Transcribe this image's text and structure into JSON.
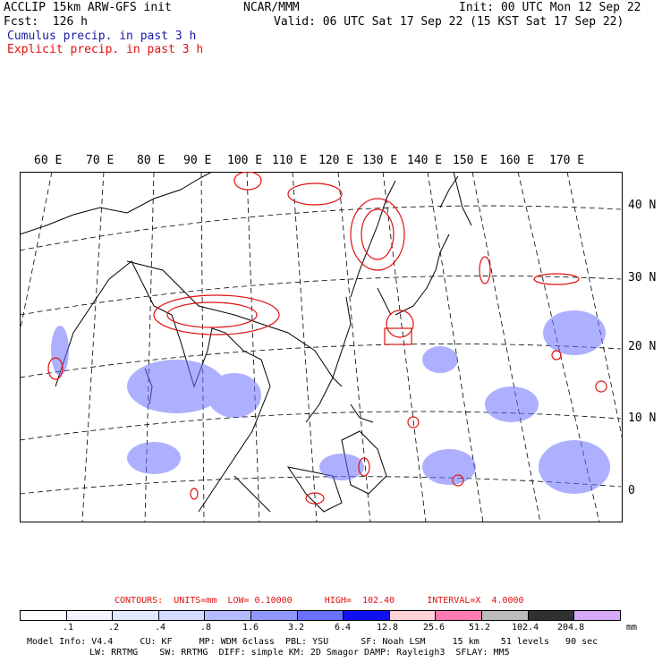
{
  "header": {
    "model": "ACCLIP 15km ARW-GFS init",
    "org": "NCAR/MMM",
    "init": "Init: 00 UTC Mon 12 Sep 22",
    "fcst": "Fcst:  126 h",
    "valid": "Valid: 06 UTC Sat 17 Sep 22 (15 KST Sat 17 Sep 22)",
    "cumulus": "Cumulus precip. in past 3 h",
    "explicit": "Explicit precip. in past 3 h"
  },
  "longitudes": [
    "60 E",
    "70 E",
    "80 E",
    "90 E",
    "100 E",
    "110 E",
    "120 E",
    "130 E",
    "140 E",
    "150 E",
    "160 E",
    "170 E"
  ],
  "latitudes": [
    "40 N",
    "30 N",
    "20 N",
    "10 N",
    "0"
  ],
  "legend": {
    "contours": "CONTOURS:  UNITS=mm  LOW= 0.10000      HIGH=  102.40      INTERVAL=X  4.0000",
    "ticks": [
      ".1",
      ".2",
      ".4",
      ".8",
      "1.6",
      "3.2",
      "6.4",
      "12.8",
      "25.6",
      "51.2",
      "102.4",
      "204.8"
    ],
    "unit": "mm",
    "colors": [
      "#ffffff",
      "#f2f4ff",
      "#e4e8ff",
      "#d4dcff",
      "#b4bcff",
      "#9098ff",
      "#6a70ff",
      "#1010f0",
      "#ffd2d8",
      "#ff7ab0",
      "#bcbcbc",
      "#303030",
      "#d8a8f8"
    ]
  },
  "footer": {
    "line1": "Model Info: V4.4     CU: KF     MP: WDM 6class  PBL: YSU      SF: Noah LSM     15 km    51 levels   90 sec",
    "line2": "LW: RRTMG    SW: RRTMG  DIFF: simple KM: 2D Smagor DAMP: Rayleigh3  SFLAY: MM5"
  }
}
